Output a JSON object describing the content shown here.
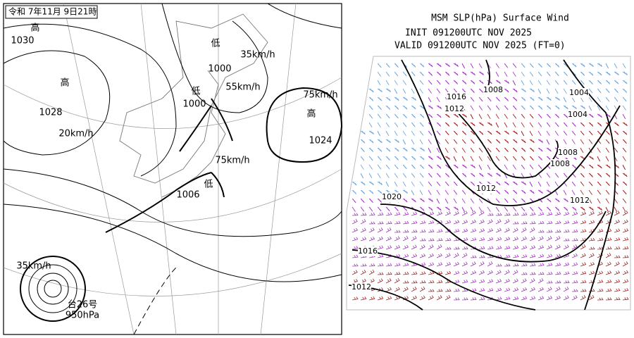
{
  "left_panel": {
    "date": "令和 7年11月 9日21時",
    "labels": [
      "高",
      "1030",
      "高",
      "1028",
      "20km/h",
      "低",
      "1000",
      "35km/h",
      "低",
      "1000",
      "55km/h",
      "高",
      "1024",
      "75km/h",
      "75km/h",
      "低",
      "1006",
      "35km/h",
      "台26号",
      "950hPa"
    ]
  },
  "right_panel": {
    "title": "MSM SLP(hPa) Surface Wind",
    "init": "INIT 091200UTC NOV 2025",
    "valid": "VALID 091200UTC NOV 2025  (FT=0)",
    "isobar_labels": [
      "1016",
      "1008",
      "1012",
      "1004",
      "1004",
      "1008",
      "1008",
      "1012",
      "1012",
      "1020",
      "1016",
      "1012"
    ]
  }
}
